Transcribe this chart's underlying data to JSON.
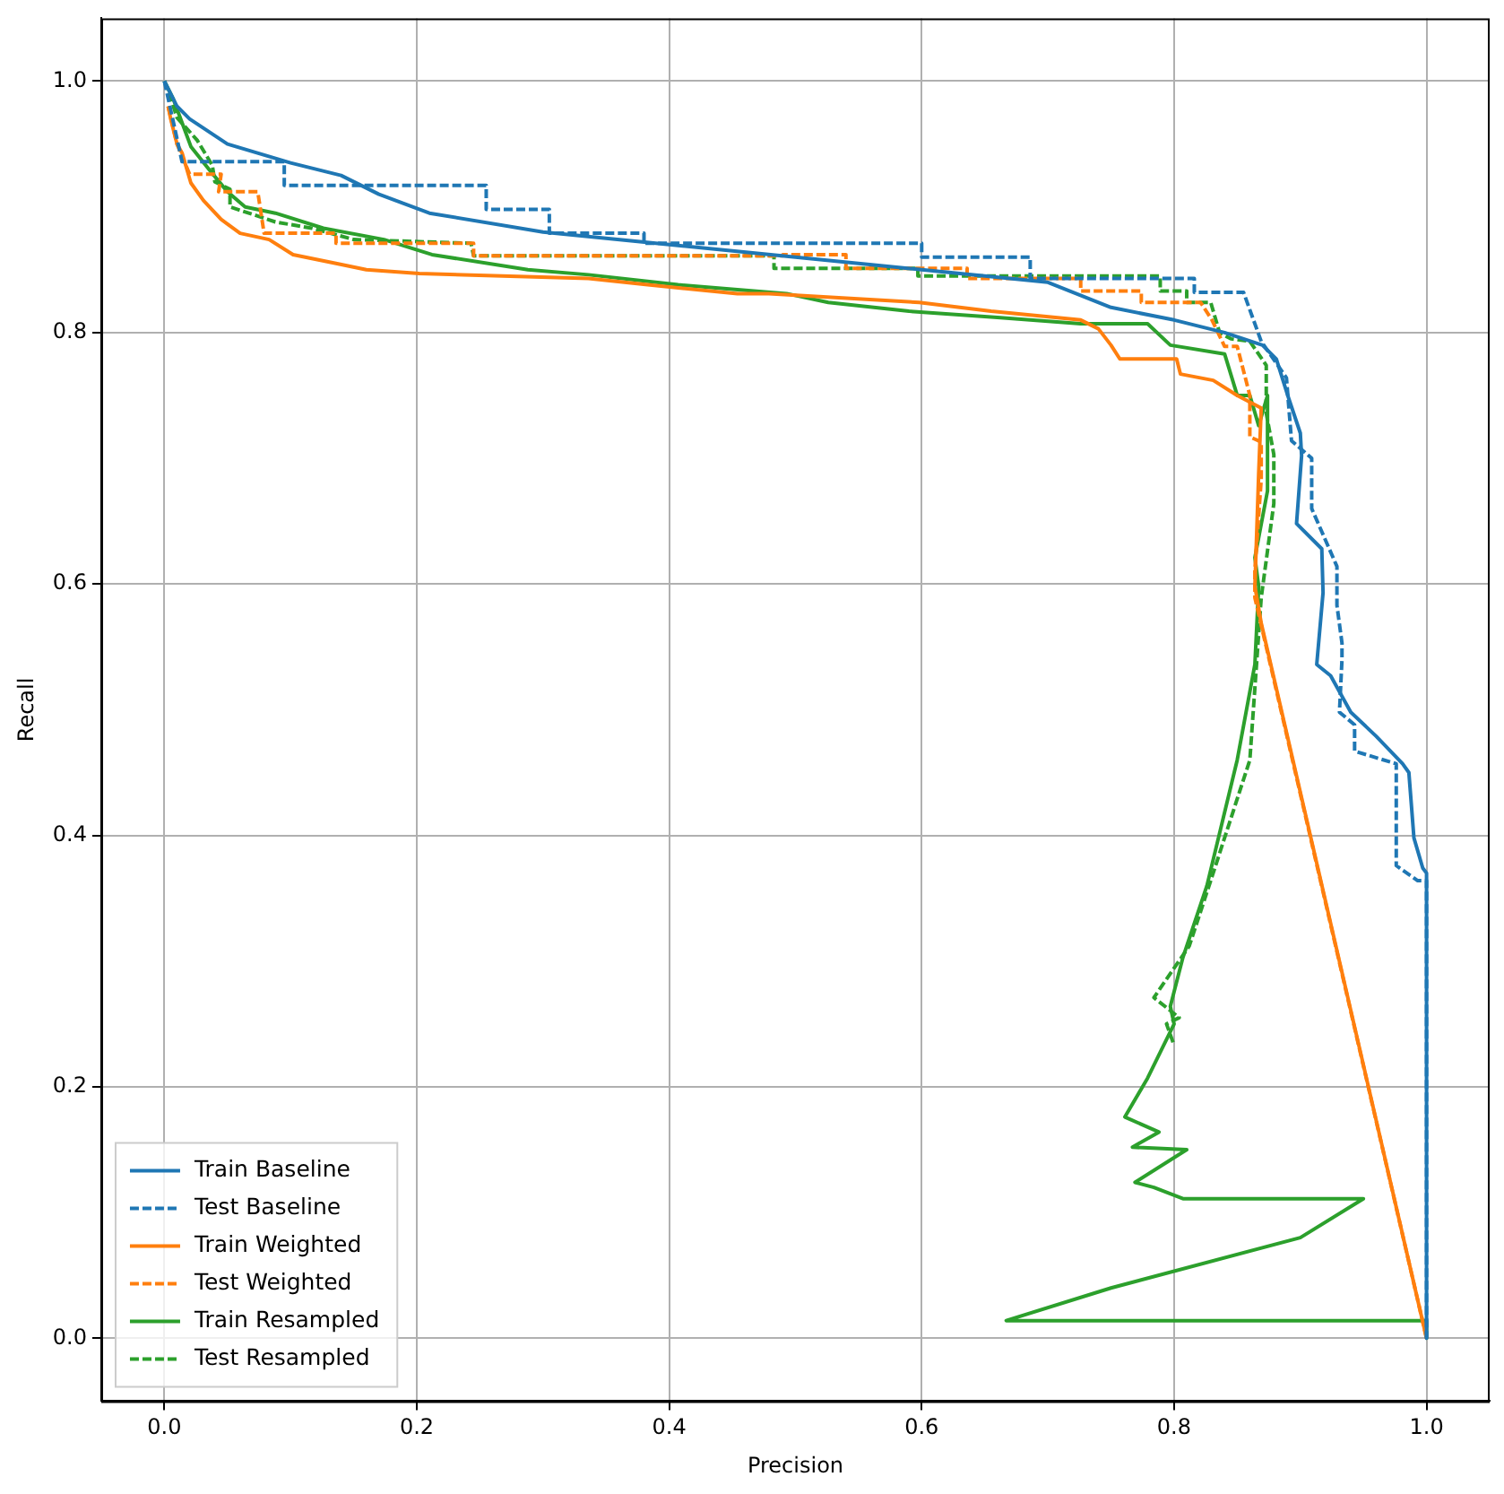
{
  "chart_data": {
    "type": "line",
    "xlabel": "Precision",
    "ylabel": "Recall",
    "xlim": [
      -0.05,
      1.05
    ],
    "ylim": [
      -0.05,
      1.05
    ],
    "xticks": [
      {
        "value": 0,
        "label": "0.0"
      },
      {
        "value": 0.2,
        "label": "0.2"
      },
      {
        "value": 0.4,
        "label": "0.4"
      },
      {
        "value": 0.6,
        "label": "0.6"
      },
      {
        "value": 0.8,
        "label": "0.8"
      },
      {
        "value": 1,
        "label": "1.0"
      }
    ],
    "yticks": [
      {
        "value": 0,
        "label": "0.0"
      },
      {
        "value": 0.2,
        "label": "0.2"
      },
      {
        "value": 0.4,
        "label": "0.4"
      },
      {
        "value": 0.6,
        "label": "0.6"
      },
      {
        "value": 0.8,
        "label": "0.8"
      },
      {
        "value": 1,
        "label": "1.0"
      }
    ],
    "grid": true,
    "legend": "bottom left",
    "marker": "none",
    "series": [
      {
        "name": "Train Baseline",
        "color": "#1f77b4",
        "line_style": "solid",
        "x": [
          0,
          0.01,
          0.02,
          0.05,
          0.1,
          0.14,
          0.17,
          0.21,
          0.3,
          0.4,
          0.5,
          0.6,
          0.7,
          0.75,
          0.8,
          0.84,
          0.87,
          0.881,
          0.89,
          0.9,
          0.901,
          0.897,
          0.917,
          0.918,
          0.913,
          0.924,
          0.94,
          0.96,
          0.981,
          0.986,
          0.99,
          0.997,
          1.0,
          1.0
        ],
        "values": [
          1,
          0.98,
          0.97,
          0.95,
          0.935,
          0.925,
          0.91,
          0.895,
          0.88,
          0.87,
          0.86,
          0.85,
          0.84,
          0.82,
          0.81,
          0.8,
          0.79,
          0.779,
          0.75,
          0.72,
          0.702,
          0.648,
          0.628,
          0.593,
          0.536,
          0.527,
          0.498,
          0.479,
          0.457,
          0.45,
          0.398,
          0.374,
          0.37,
          0.0
        ]
      },
      {
        "name": "Test Baseline",
        "color": "#1f77b4",
        "line_style": "dashed",
        "x": [
          0,
          0.014,
          0.095,
          0.095,
          0.255,
          0.255,
          0.305,
          0.305,
          0.38,
          0.38,
          0.6,
          0.6,
          0.686,
          0.686,
          0.816,
          0.816,
          0.855,
          0.869,
          0.889,
          0.893,
          0.909,
          0.909,
          0.929,
          0.929,
          0.933,
          0.933,
          0.931,
          0.943,
          0.943,
          0.976,
          0.976,
          0.993,
          1.0,
          1.0
        ],
        "values": [
          1,
          0.936,
          0.936,
          0.917,
          0.917,
          0.898,
          0.898,
          0.879,
          0.879,
          0.871,
          0.871,
          0.86,
          0.86,
          0.843,
          0.843,
          0.832,
          0.832,
          0.793,
          0.764,
          0.714,
          0.7,
          0.66,
          0.614,
          0.583,
          0.553,
          0.54,
          0.498,
          0.488,
          0.467,
          0.457,
          0.376,
          0.364,
          0.364,
          0.0
        ]
      },
      {
        "name": "Train Weighted",
        "color": "#ff7f0e",
        "line_style": "solid",
        "x": [
          0.003,
          0.005,
          0.01,
          0.014,
          0.021,
          0.031,
          0.045,
          0.06,
          0.083,
          0.102,
          0.136,
          0.16,
          0.202,
          0.336,
          0.383,
          0.454,
          0.479,
          0.598,
          0.655,
          0.726,
          0.74,
          0.75,
          0.757,
          0.802,
          0.805,
          0.831,
          0.85,
          0.869,
          0.867,
          0.864,
          0.869,
          1.0
        ],
        "values": [
          0.98,
          0.97,
          0.95,
          0.943,
          0.919,
          0.905,
          0.89,
          0.879,
          0.874,
          0.862,
          0.855,
          0.85,
          0.847,
          0.843,
          0.838,
          0.831,
          0.831,
          0.824,
          0.817,
          0.81,
          0.803,
          0.79,
          0.779,
          0.779,
          0.767,
          0.762,
          0.75,
          0.74,
          0.688,
          0.598,
          0.569,
          0.0
        ]
      },
      {
        "name": "Test Weighted",
        "color": "#ff7f0e",
        "line_style": "dashed",
        "x": [
          0.003,
          0.01,
          0.02,
          0.045,
          0.043,
          0.074,
          0.079,
          0.136,
          0.136,
          0.245,
          0.245,
          0.49,
          0.49,
          0.54,
          0.54,
          0.636,
          0.636,
          0.726,
          0.726,
          0.774,
          0.774,
          0.821,
          0.83,
          0.84,
          0.85,
          0.86,
          0.86,
          0.869,
          0.869,
          0.864,
          0.864,
          1.0
        ],
        "values": [
          0.98,
          0.95,
          0.926,
          0.926,
          0.912,
          0.912,
          0.879,
          0.879,
          0.871,
          0.871,
          0.861,
          0.861,
          0.862,
          0.862,
          0.851,
          0.851,
          0.843,
          0.843,
          0.833,
          0.833,
          0.824,
          0.824,
          0.81,
          0.789,
          0.789,
          0.75,
          0.717,
          0.713,
          0.683,
          0.611,
          0.589,
          0.0
        ]
      },
      {
        "name": "Train Resampled",
        "color": "#2ca02c",
        "line_style": "solid",
        "x": [
          0,
          0.007,
          0.014,
          0.021,
          0.036,
          0.05,
          0.064,
          0.088,
          0.126,
          0.174,
          0.212,
          0.288,
          0.336,
          0.407,
          0.493,
          0.526,
          0.59,
          0.66,
          0.726,
          0.779,
          0.797,
          0.84,
          0.85,
          0.86,
          0.867,
          0.874,
          0.874,
          0.864,
          0.867,
          0.864,
          0.85,
          0.826,
          0.807,
          0.797,
          0.8,
          0.779,
          0.761,
          0.788,
          0.767,
          0.81,
          0.769,
          0.784,
          0.807,
          0.95,
          0.9,
          0.75,
          0.667,
          1.0,
          1.0
        ],
        "values": [
          1,
          0.986,
          0.967,
          0.948,
          0.929,
          0.912,
          0.9,
          0.895,
          0.883,
          0.874,
          0.862,
          0.85,
          0.846,
          0.838,
          0.831,
          0.824,
          0.817,
          0.812,
          0.807,
          0.807,
          0.79,
          0.783,
          0.75,
          0.75,
          0.726,
          0.75,
          0.674,
          0.621,
          0.598,
          0.536,
          0.46,
          0.36,
          0.303,
          0.264,
          0.25,
          0.207,
          0.176,
          0.164,
          0.152,
          0.15,
          0.124,
          0.12,
          0.111,
          0.111,
          0.08,
          0.04,
          0.014,
          0.014,
          0.0
        ]
      },
      {
        "name": "Test Resampled",
        "color": "#2ca02c",
        "line_style": "dashed",
        "x": [
          0,
          0.004,
          0.01,
          0.026,
          0.038,
          0.04,
          0.052,
          0.052,
          0.088,
          0.117,
          0.15,
          0.243,
          0.245,
          0.483,
          0.483,
          0.597,
          0.597,
          0.789,
          0.789,
          0.81,
          0.81,
          0.829,
          0.836,
          0.845,
          0.86,
          0.873,
          0.873,
          0.879,
          0.879,
          0.869,
          0.86,
          0.829,
          0.812,
          0.784,
          0.804,
          0.794,
          0.8
        ],
        "values": [
          1,
          0.99,
          0.971,
          0.953,
          0.933,
          0.92,
          0.914,
          0.9,
          0.888,
          0.883,
          0.874,
          0.871,
          0.861,
          0.861,
          0.851,
          0.851,
          0.845,
          0.845,
          0.833,
          0.833,
          0.824,
          0.824,
          0.8,
          0.795,
          0.793,
          0.774,
          0.736,
          0.703,
          0.664,
          0.589,
          0.46,
          0.364,
          0.312,
          0.271,
          0.255,
          0.25,
          0.233
        ]
      }
    ]
  }
}
